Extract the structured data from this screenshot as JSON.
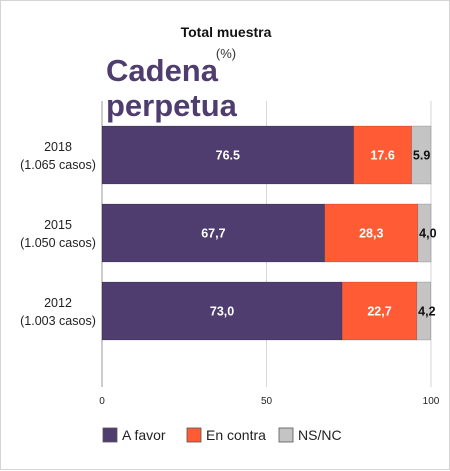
{
  "chart_data": {
    "type": "bar",
    "orientation": "horizontal",
    "stacked": true,
    "title": "Total muestra",
    "subtitle": "(%)",
    "overlay_text": [
      "Cadena",
      "perpetua"
    ],
    "categories": [
      [
        "2018",
        "(1.065 casos)"
      ],
      [
        "2015",
        "(1.050 casos)"
      ],
      [
        "2012",
        "(1.003 casos)"
      ]
    ],
    "series": [
      {
        "name": "A favor",
        "color": "#4e3d6e",
        "label_color": "#ffffff",
        "values": [
          76.5,
          67.7,
          73.0
        ],
        "labels": [
          "76.5",
          "67,7",
          "73,0"
        ]
      },
      {
        "name": "En contra",
        "color": "#ff5c36",
        "label_color": "#ffffff",
        "values": [
          17.6,
          28.3,
          22.7
        ],
        "labels": [
          "17.6",
          "28,3",
          "22,7"
        ]
      },
      {
        "name": "NS/NC",
        "color": "#c4c4c4",
        "label_color": "#111111",
        "values": [
          5.9,
          4.0,
          4.2
        ],
        "labels": [
          "5.9",
          "4,0",
          "4,2"
        ]
      }
    ],
    "xlim": [
      0,
      100
    ],
    "xticks": [
      "0",
      "50",
      "100"
    ],
    "grid": true,
    "legend_position": "bottom"
  }
}
